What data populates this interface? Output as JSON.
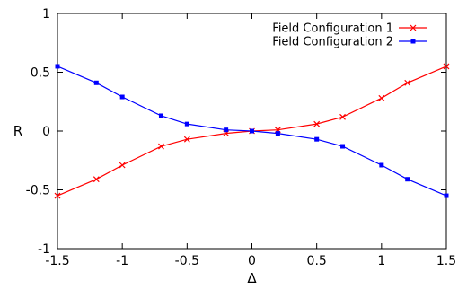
{
  "chart_data": {
    "type": "line",
    "xlabel": "Δ",
    "ylabel": "R",
    "xlim": [
      -1.5,
      1.5
    ],
    "ylim": [
      -1,
      1
    ],
    "xticks": [
      -1.5,
      -1,
      -0.5,
      0,
      0.5,
      1,
      1.5
    ],
    "yticks": [
      -1,
      -0.5,
      0,
      0.5,
      1
    ],
    "xtick_labels": [
      "-1.5",
      "-1",
      "-0.5",
      "0",
      "0.5",
      "1",
      "1.5"
    ],
    "ytick_labels": [
      "-1",
      "-0.5",
      "0",
      "0.5",
      "1"
    ],
    "grid": false,
    "legend_position": "top-right",
    "series": [
      {
        "name": "Field Configuration 1",
        "color": "#ff0000",
        "marker": "x",
        "x": [
          -1.5,
          -1.2,
          -1.0,
          -0.7,
          -0.5,
          -0.2,
          0,
          0.2,
          0.5,
          0.7,
          1.0,
          1.2,
          1.5
        ],
        "y": [
          -0.55,
          -0.41,
          -0.29,
          -0.13,
          -0.07,
          -0.02,
          0,
          0.01,
          0.06,
          0.12,
          0.28,
          0.41,
          0.55
        ]
      },
      {
        "name": "Field Configuration 2",
        "color": "#0000ff",
        "marker": "square",
        "x": [
          -1.5,
          -1.2,
          -1.0,
          -0.7,
          -0.5,
          -0.2,
          0,
          0.2,
          0.5,
          0.7,
          1.0,
          1.2,
          1.5
        ],
        "y": [
          0.55,
          0.41,
          0.29,
          0.13,
          0.06,
          0.01,
          0,
          -0.02,
          -0.07,
          -0.13,
          -0.29,
          -0.41,
          -0.55
        ]
      }
    ]
  }
}
